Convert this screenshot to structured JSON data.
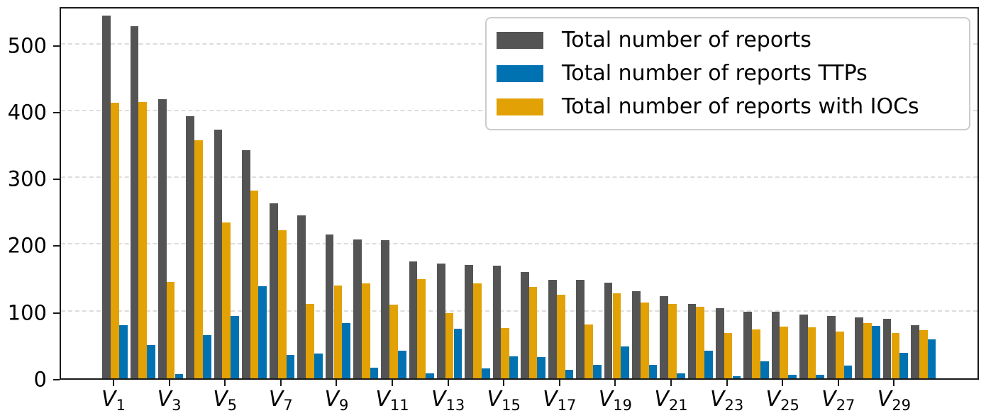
{
  "chart_data": {
    "type": "bar",
    "title": "",
    "xlabel": "",
    "ylabel": "",
    "categories": [
      "V_1",
      "V_2",
      "V_3",
      "V_4",
      "V_5",
      "V_6",
      "V_7",
      "V_8",
      "V_9",
      "V_10",
      "V_11",
      "V_12",
      "V_13",
      "V_14",
      "V_15",
      "V_16",
      "V_17",
      "V_18",
      "V_19",
      "V_20",
      "V_21",
      "V_22",
      "V_23",
      "V_24",
      "V_25",
      "V_26",
      "V_27",
      "V_28",
      "V_29",
      "V_30"
    ],
    "xtick_step": 2,
    "xtick_labels": [
      "V_1",
      "V_3",
      "V_5",
      "V_7",
      "V_9",
      "V_11",
      "V_13",
      "V_15",
      "V_17",
      "V_19",
      "V_21",
      "V_23",
      "V_25",
      "V_27",
      "V_29"
    ],
    "yticks": [
      0,
      100,
      200,
      300,
      400,
      500
    ],
    "ylim": [
      0,
      558
    ],
    "grid": "horizontal-dashed",
    "legend_position": "upper-right",
    "bar_draw_order": [
      0,
      2,
      1
    ],
    "series": [
      {
        "name": "Total number of reports",
        "color": "#545454",
        "values": [
          543,
          527,
          418,
          393,
          372,
          342,
          262,
          244,
          215,
          208,
          207,
          175,
          172,
          170,
          169,
          159,
          148,
          147,
          143,
          131,
          123,
          111,
          105,
          100,
          100,
          95,
          93,
          91,
          89,
          80
        ]
      },
      {
        "name": "Total number of reports TTPs",
        "color": "#0072b2",
        "values": [
          80,
          50,
          6,
          65,
          93,
          138,
          35,
          37,
          83,
          16,
          41,
          7,
          74,
          15,
          33,
          32,
          13,
          20,
          48,
          20,
          7,
          41,
          3,
          26,
          5,
          5,
          19,
          78,
          38,
          58
        ]
      },
      {
        "name": "Total number of reports with IOCs",
        "color": "#e2a104",
        "values": [
          413,
          414,
          144,
          356,
          233,
          281,
          222,
          111,
          139,
          142,
          110,
          149,
          98,
          142,
          75,
          137,
          125,
          81,
          127,
          113,
          111,
          107,
          68,
          73,
          77,
          76,
          70,
          83,
          68,
          72
        ]
      }
    ],
    "colors": {
      "axis": "#1a1a1a",
      "gridline": "#dddddd",
      "legend_border": "#cccccc",
      "background": "#ffffff"
    }
  }
}
